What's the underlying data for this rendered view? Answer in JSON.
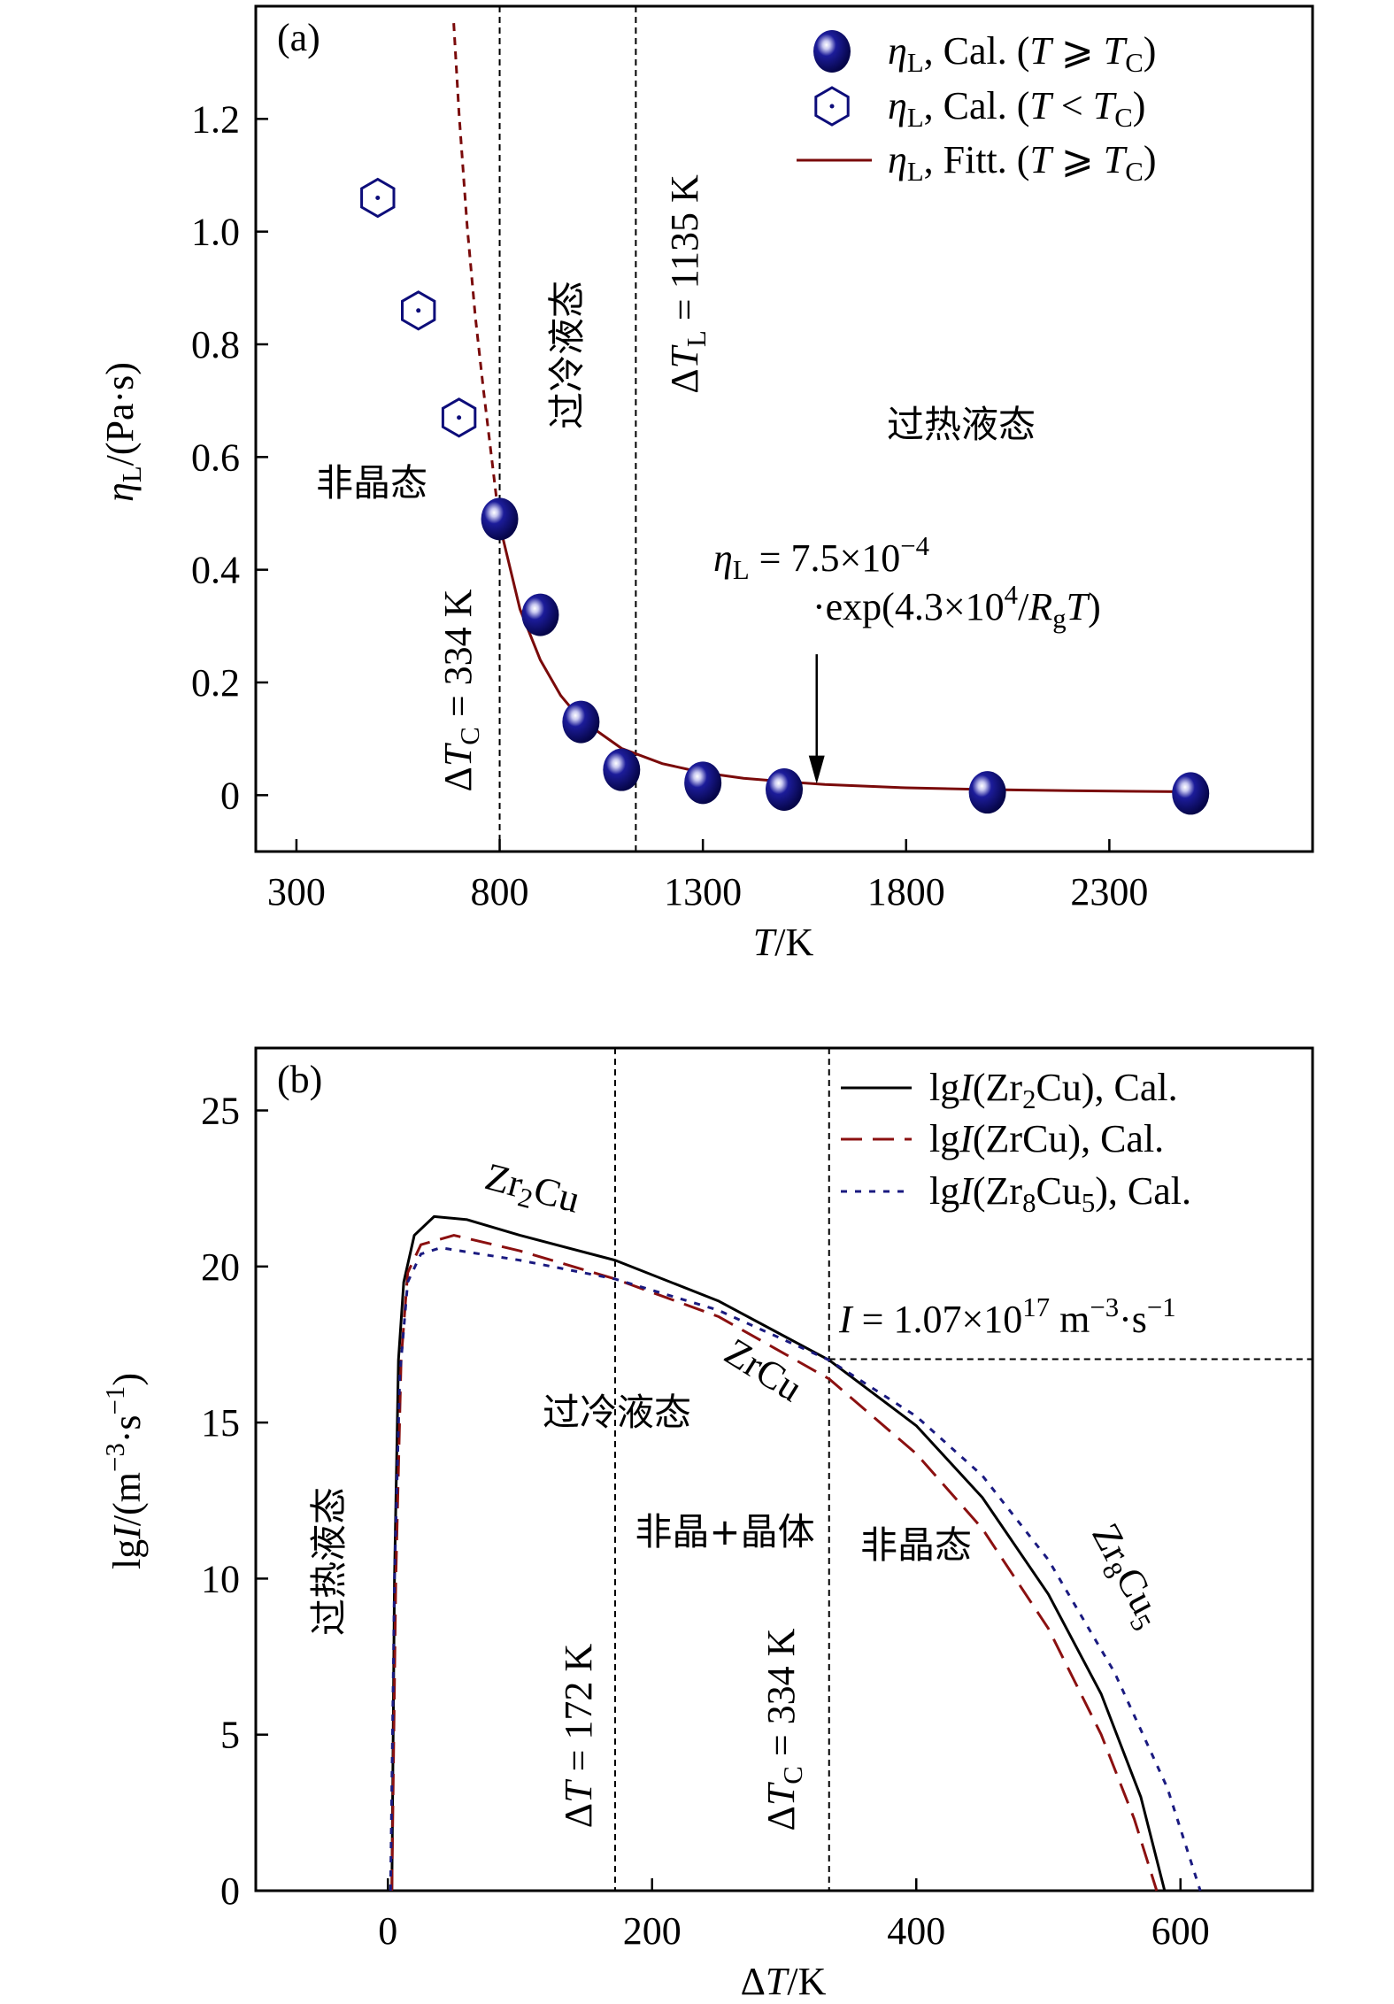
{
  "chart_data": [
    {
      "panel_label": "(a)",
      "type": "scatter",
      "xlabel": [
        [
          "T",
          "i"
        ],
        [
          "/K",
          ""
        ]
      ],
      "ylabel": [
        [
          "η",
          "i"
        ],
        [
          "L",
          "sub"
        ],
        [
          "/(Pa·s)",
          ""
        ]
      ],
      "xlim": [
        200,
        2800
      ],
      "ylim": [
        -0.1,
        1.4
      ],
      "xticks": [
        300,
        800,
        1300,
        1800,
        2300
      ],
      "yticks": [
        0,
        0.2,
        0.4,
        0.6,
        0.8,
        1.0,
        1.2
      ],
      "ytick_labels": [
        "0",
        "0.2",
        "0.4",
        "0.6",
        "0.8",
        "1.0",
        "1.2"
      ],
      "grid": false,
      "legend_position": "top-right",
      "colors": {
        "marker": "#0d0d7a",
        "fit": "#7a0a0a"
      },
      "series": [
        {
          "name": [
            [
              "η",
              "i"
            ],
            [
              "L",
              "sub"
            ],
            [
              ", Cal. (",
              ""
            ],
            [
              "T",
              "i"
            ],
            [
              " ⩾ ",
              ""
            ],
            [
              "T",
              "i"
            ],
            [
              "C",
              "sub"
            ],
            [
              ")",
              ""
            ]
          ],
          "style": "filled-sphere",
          "x": [
            800,
            900,
            1000,
            1100,
            1300,
            1500,
            2000,
            2500
          ],
          "y": [
            0.49,
            0.32,
            0.13,
            0.045,
            0.022,
            0.01,
            0.005,
            0.003
          ]
        },
        {
          "name": [
            [
              "η",
              "i"
            ],
            [
              "L",
              "sub"
            ],
            [
              ", Cal. (",
              ""
            ],
            [
              "T",
              "i"
            ],
            [
              " < ",
              ""
            ],
            [
              "T",
              "i"
            ],
            [
              "C",
              "sub"
            ],
            [
              ")",
              ""
            ]
          ],
          "style": "hollow-hexagon",
          "x": [
            500,
            600,
            700
          ],
          "y": [
            1.06,
            0.86,
            0.67
          ]
        },
        {
          "name": [
            [
              "η",
              "i"
            ],
            [
              "L",
              "sub"
            ],
            [
              ", Fitt. (",
              ""
            ],
            [
              "T",
              "i"
            ],
            [
              " ⩾ ",
              ""
            ],
            [
              "T",
              "i"
            ],
            [
              "C",
              "sub"
            ],
            [
              ")",
              ""
            ]
          ],
          "style": "line",
          "x": [
            800,
            850,
            900,
            950,
            1000,
            1100,
            1200,
            1300,
            1400,
            1500,
            1600,
            1800,
            2000,
            2200,
            2500
          ],
          "y": [
            0.48,
            0.33,
            0.24,
            0.177,
            0.134,
            0.083,
            0.056,
            0.04,
            0.03,
            0.024,
            0.019,
            0.013,
            0.01,
            0.008,
            0.006
          ]
        },
        {
          "style": "dashed-extrapolation",
          "x": [
            687,
            700,
            720,
            740,
            760,
            780,
            800
          ],
          "y": [
            1.37,
            1.21,
            1.01,
            0.85,
            0.72,
            0.6,
            0.48
          ]
        }
      ],
      "vlines": [
        {
          "x": 800,
          "label": [
            [
              "Δ",
              ""
            ],
            [
              "T",
              "i"
            ],
            [
              "C",
              "sub"
            ],
            [
              " = 334 K",
              ""
            ]
          ]
        },
        {
          "x": 1135,
          "label": [
            [
              "Δ",
              ""
            ],
            [
              "T",
              "i"
            ],
            [
              "L",
              "sub"
            ],
            [
              " = 1135 K",
              ""
            ]
          ]
        }
      ],
      "annotations": {
        "amorphous": "非晶态",
        "supercooled": "过冷液态",
        "superheated": "过热液态",
        "formula_line1": [
          [
            "η",
            "i"
          ],
          [
            "L",
            "sub"
          ],
          [
            " = 7.5×10",
            ""
          ],
          [
            "−4",
            "sup"
          ]
        ],
        "formula_line2": [
          [
            "·exp(4.3×10",
            ""
          ],
          [
            "4",
            "sup"
          ],
          [
            "/",
            ""
          ],
          [
            "R",
            "i"
          ],
          [
            "g",
            "sub"
          ],
          [
            "T",
            "i"
          ],
          [
            ")",
            ""
          ]
        ],
        "arrow": {
          "x": 1580,
          "y_from": 0.25,
          "y_to": 0.02
        }
      }
    },
    {
      "panel_label": "(b)",
      "type": "line",
      "xlabel": [
        [
          "Δ",
          ""
        ],
        [
          "T",
          "i"
        ],
        [
          "/K",
          ""
        ]
      ],
      "ylabel": [
        [
          "lg",
          ""
        ],
        [
          "I",
          "i"
        ],
        [
          "/(m",
          ""
        ],
        [
          "−3",
          "sup"
        ],
        [
          "·s",
          ""
        ],
        [
          "−1",
          "sup"
        ],
        [
          ")",
          ""
        ]
      ],
      "xlim": [
        -100,
        700
      ],
      "ylim": [
        0,
        27
      ],
      "xticks": [
        0,
        200,
        400,
        600
      ],
      "yticks": [
        0,
        5,
        10,
        15,
        20,
        25
      ],
      "grid": false,
      "legend_position": "top-right",
      "series": [
        {
          "name": [
            [
              "lg",
              ""
            ],
            [
              "I",
              "i"
            ],
            [
              "(Zr",
              ""
            ],
            [
              "2",
              "sub"
            ],
            [
              "Cu), Cal.",
              ""
            ]
          ],
          "style": "solid",
          "color": "#000000",
          "curve_label": [
            [
              "Zr",
              ""
            ],
            [
              "2",
              "sub"
            ],
            [
              "Cu",
              ""
            ]
          ],
          "points": [
            [
              3,
              0
            ],
            [
              5,
              10
            ],
            [
              8,
              17
            ],
            [
              12,
              19.5
            ],
            [
              20,
              21
            ],
            [
              35,
              21.6
            ],
            [
              60,
              21.5
            ],
            [
              100,
              21.0
            ],
            [
              172,
              20.2
            ],
            [
              250,
              18.9
            ],
            [
              334,
              17.0
            ],
            [
              400,
              14.9
            ],
            [
              450,
              12.6
            ],
            [
              500,
              9.5
            ],
            [
              540,
              6.3
            ],
            [
              570,
              3.0
            ],
            [
              588,
              0
            ]
          ]
        },
        {
          "name": [
            [
              "lg",
              ""
            ],
            [
              "I",
              "i"
            ],
            [
              "(ZrCu), Cal.",
              ""
            ]
          ],
          "style": "dashed",
          "color": "#8b1010",
          "curve_label": [
            [
              "ZrCu",
              ""
            ]
          ],
          "points": [
            [
              3,
              0
            ],
            [
              6,
              10
            ],
            [
              10,
              17
            ],
            [
              15,
              19.8
            ],
            [
              25,
              20.7
            ],
            [
              50,
              21.0
            ],
            [
              100,
              20.5
            ],
            [
              172,
              19.6
            ],
            [
              250,
              18.4
            ],
            [
              334,
              16.4
            ],
            [
              400,
              14.0
            ],
            [
              450,
              11.6
            ],
            [
              500,
              8.4
            ],
            [
              540,
              5.0
            ],
            [
              565,
              2.3
            ],
            [
              582,
              0
            ]
          ]
        },
        {
          "name": [
            [
              "lg",
              ""
            ],
            [
              "I",
              "i"
            ],
            [
              "(Zr",
              ""
            ],
            [
              "8",
              "sub"
            ],
            [
              "Cu",
              ""
            ],
            [
              "5",
              "sub"
            ],
            [
              "), Cal.",
              ""
            ]
          ],
          "style": "dotted",
          "color": "#1a1a80",
          "curve_label": [
            [
              "Zr",
              ""
            ],
            [
              "8",
              "sub"
            ],
            [
              "Cu",
              ""
            ],
            [
              "5",
              "sub"
            ]
          ],
          "points": [
            [
              2,
              0
            ],
            [
              5,
              10
            ],
            [
              9,
              16.5
            ],
            [
              15,
              19.5
            ],
            [
              25,
              20.4
            ],
            [
              40,
              20.6
            ],
            [
              100,
              20.2
            ],
            [
              172,
              19.6
            ],
            [
              250,
              18.6
            ],
            [
              334,
              17.0
            ],
            [
              400,
              15.2
            ],
            [
              450,
              13.3
            ],
            [
              500,
              10.6
            ],
            [
              550,
              7.0
            ],
            [
              590,
              3.3
            ],
            [
              615,
              0
            ]
          ]
        }
      ],
      "vlines": [
        {
          "x": 172,
          "label": [
            [
              "Δ",
              ""
            ],
            [
              "T",
              "i"
            ],
            [
              " = 172 K",
              ""
            ]
          ]
        },
        {
          "x": 334,
          "label": [
            [
              "Δ",
              ""
            ],
            [
              "T",
              "i"
            ],
            [
              "C",
              "sub"
            ],
            [
              " = 334 K",
              ""
            ]
          ]
        }
      ],
      "hline": {
        "y": 17.03,
        "x_from": 334,
        "label": [
          [
            "I",
            "i"
          ],
          [
            " = 1.07×10",
            ""
          ],
          [
            "17",
            "sup"
          ],
          [
            " m",
            ""
          ],
          [
            "−3",
            "sup"
          ],
          [
            "·s",
            ""
          ],
          [
            "−1",
            "sup"
          ]
        ]
      },
      "annotations": {
        "supercooled": "过冷液态",
        "mixed": "非晶+晶体",
        "amorphous": "非晶态",
        "superheated": "过热液态"
      }
    }
  ]
}
